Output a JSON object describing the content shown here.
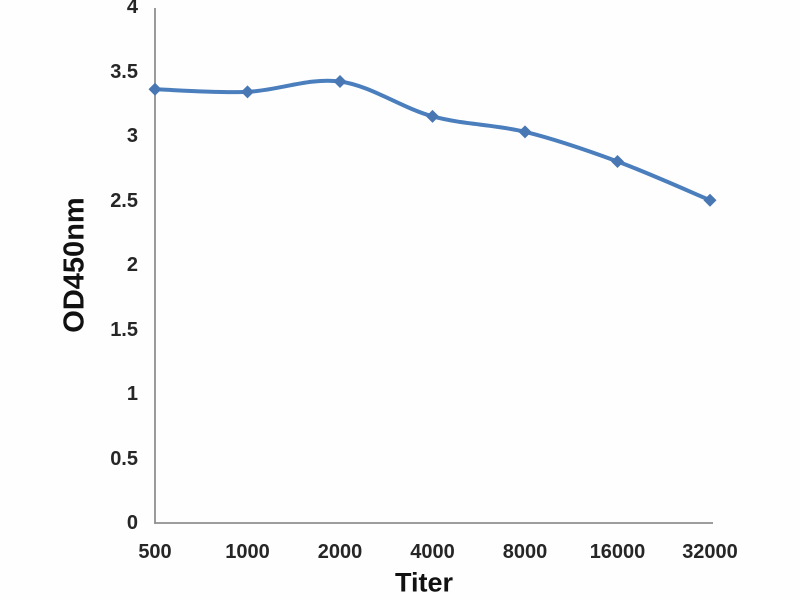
{
  "chart_data": {
    "type": "line",
    "title": "",
    "xlabel": "Titer",
    "ylabel": "OD450nm",
    "categories": [
      "500",
      "1000",
      "2000",
      "4000",
      "8000",
      "16000",
      "32000"
    ],
    "series": [
      {
        "name": "OD450nm",
        "values": [
          3.37,
          3.35,
          3.43,
          3.16,
          3.04,
          2.81,
          2.51
        ]
      }
    ],
    "yticks": [
      "0",
      "0.5",
      "1",
      "1.5",
      "2",
      "2.5",
      "3",
      "3.5",
      "4"
    ],
    "ylim": [
      0,
      4
    ],
    "grid": false,
    "legend": false,
    "smooth_line": true,
    "marker": "diamond",
    "colors": {
      "line": "#4a7ebd",
      "marker": "#4877b4",
      "axis": "#8f8f8f",
      "tick_text": "#262626",
      "title_text": "#111111",
      "background": "#fefefe"
    }
  }
}
